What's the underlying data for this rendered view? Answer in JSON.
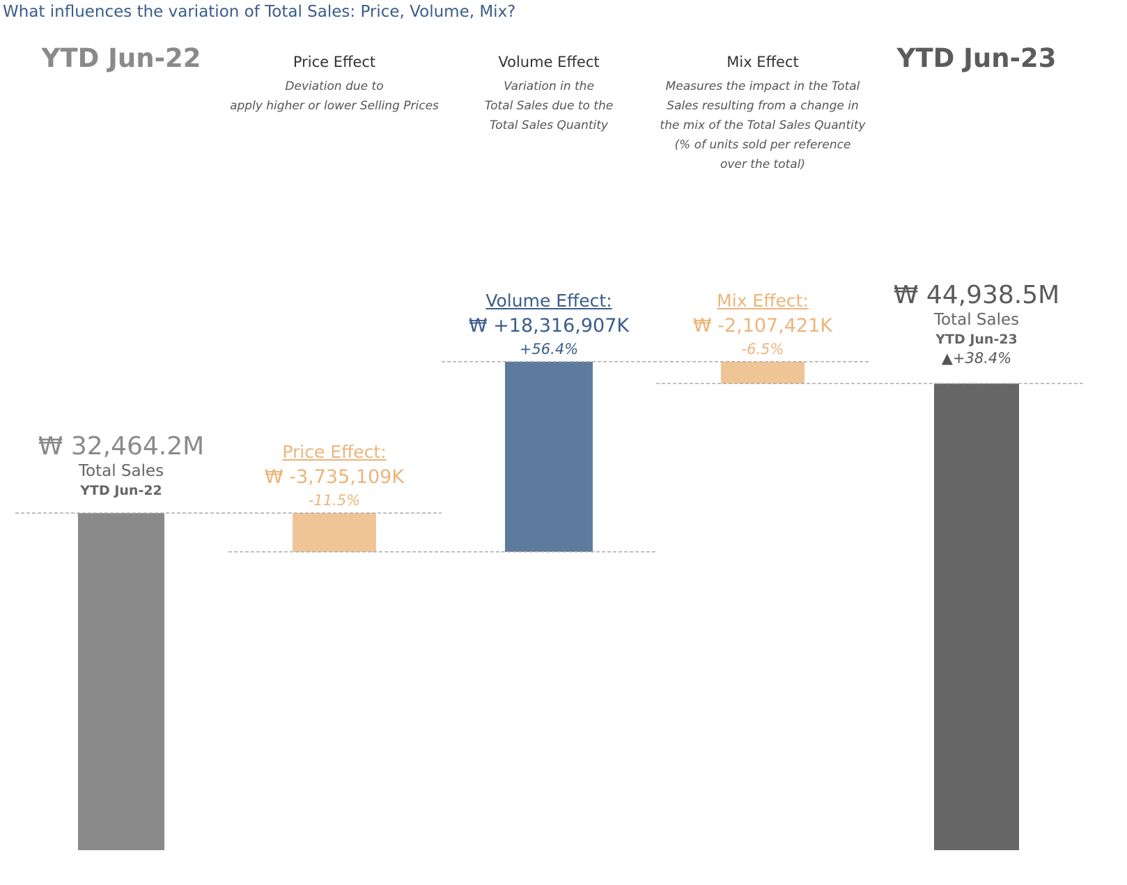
{
  "title": "What influences the variation of Total Sales: Price, Volume, Mix?",
  "columns": [
    {
      "id": "base",
      "header": "YTD Jun-22"
    },
    {
      "id": "price",
      "header": "Price Effect",
      "description": [
        "Deviation due to",
        "apply higher or lower Selling Prices"
      ]
    },
    {
      "id": "volume",
      "header": "Volume Effect",
      "description": [
        "Variation in the",
        "Total Sales due to the",
        "Total Sales Quantity"
      ]
    },
    {
      "id": "mix",
      "header": "Mix Effect",
      "description": [
        "Measures the impact in the Total",
        "Sales resulting from a change in",
        "the mix of the Total Sales Quantity",
        "(% of units sold per reference",
        "over the total)"
      ]
    },
    {
      "id": "current",
      "header": "YTD Jun-23"
    }
  ],
  "labels": {
    "base": {
      "value": "₩ 32,464.2M",
      "sub": "Total Sales",
      "sub2": "YTD Jun-22"
    },
    "price": {
      "title": "Price Effect:",
      "value": "₩ -3,735,109K",
      "pct": "-11.5%"
    },
    "volume": {
      "title": "Volume Effect:",
      "value": "₩ +18,316,907K",
      "pct": "+56.4%"
    },
    "mix": {
      "title": "Mix Effect:",
      "value": "₩ -2,107,421K",
      "pct": "-6.5%"
    },
    "current": {
      "value": "₩ 44,938.5M",
      "sub": "Total Sales",
      "sub2": "YTD Jun-23",
      "change": "▲+38.4%"
    }
  },
  "colors": {
    "title": "#3a5d8a",
    "base_bar": "#8a8a8a",
    "current_bar": "#666666",
    "positive": "#5e7b9d",
    "negative": "#f0c596",
    "positive_text": "#3a5d8a",
    "negative_text": "#ecb47a",
    "connector": "#aaaaaa"
  },
  "chart_data": {
    "type": "bar",
    "subtype": "waterfall",
    "unit": "M KRW",
    "categories": [
      "YTD Jun-22",
      "Price Effect",
      "Volume Effect",
      "Mix Effect",
      "YTD Jun-23"
    ],
    "steps": [
      {
        "category": "YTD Jun-22",
        "kind": "total",
        "value": 32464.2
      },
      {
        "category": "Price Effect",
        "kind": "delta",
        "value": -3735.1
      },
      {
        "category": "Volume Effect",
        "kind": "delta",
        "value": 18316.9
      },
      {
        "category": "Mix Effect",
        "kind": "delta",
        "value": -2107.4
      },
      {
        "category": "YTD Jun-23",
        "kind": "total",
        "value": 44938.5
      }
    ],
    "pct_change": [
      null,
      -11.5,
      56.4,
      -6.5,
      38.4
    ],
    "grid": false
  }
}
